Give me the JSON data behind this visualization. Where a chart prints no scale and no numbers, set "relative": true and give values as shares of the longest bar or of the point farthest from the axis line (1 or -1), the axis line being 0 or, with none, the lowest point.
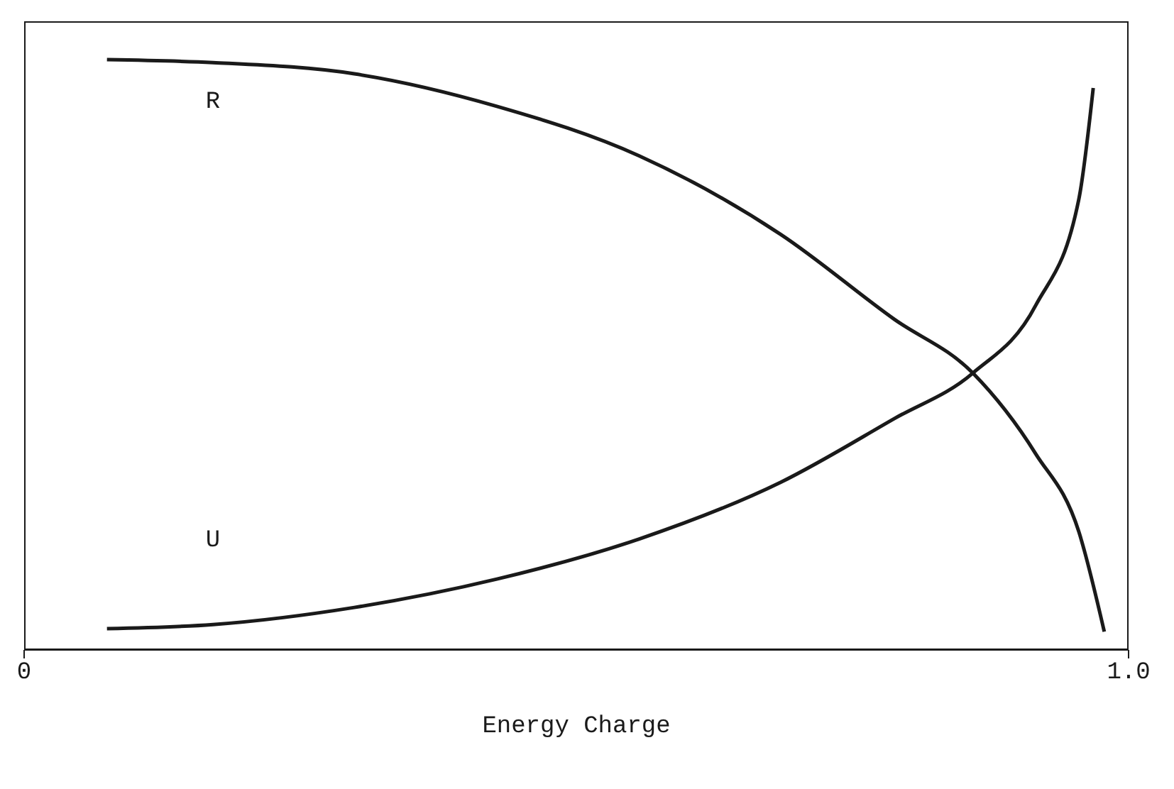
{
  "chart_data": {
    "type": "line",
    "xlabel": "Energy Charge",
    "relative": true,
    "xlim": [
      0,
      1.0
    ],
    "xticks": [
      {
        "value": 0,
        "label": "0"
      },
      {
        "value": 1.0,
        "label": "1.0"
      }
    ],
    "grid": false,
    "legend": false,
    "marker": "none",
    "line_style": "solid",
    "series": [
      {
        "name": "R",
        "color": "#1a1a1a",
        "x": [
          0.075,
          0.171,
          0.299,
          0.428,
          0.557,
          0.685,
          0.788,
          0.859,
          0.916,
          0.955,
          0.978
        ],
        "values": [
          1.0,
          0.995,
          0.976,
          0.921,
          0.837,
          0.704,
          0.56,
          0.469,
          0.332,
          0.2,
          0.031
        ]
      },
      {
        "name": "U",
        "color": "#1a1a1a",
        "x": [
          0.075,
          0.171,
          0.299,
          0.428,
          0.557,
          0.685,
          0.788,
          0.859,
          0.916,
          0.955,
          0.968
        ],
        "values": [
          0.036,
          0.043,
          0.072,
          0.12,
          0.188,
          0.284,
          0.392,
          0.469,
          0.584,
          0.764,
          0.952
        ]
      }
    ]
  }
}
